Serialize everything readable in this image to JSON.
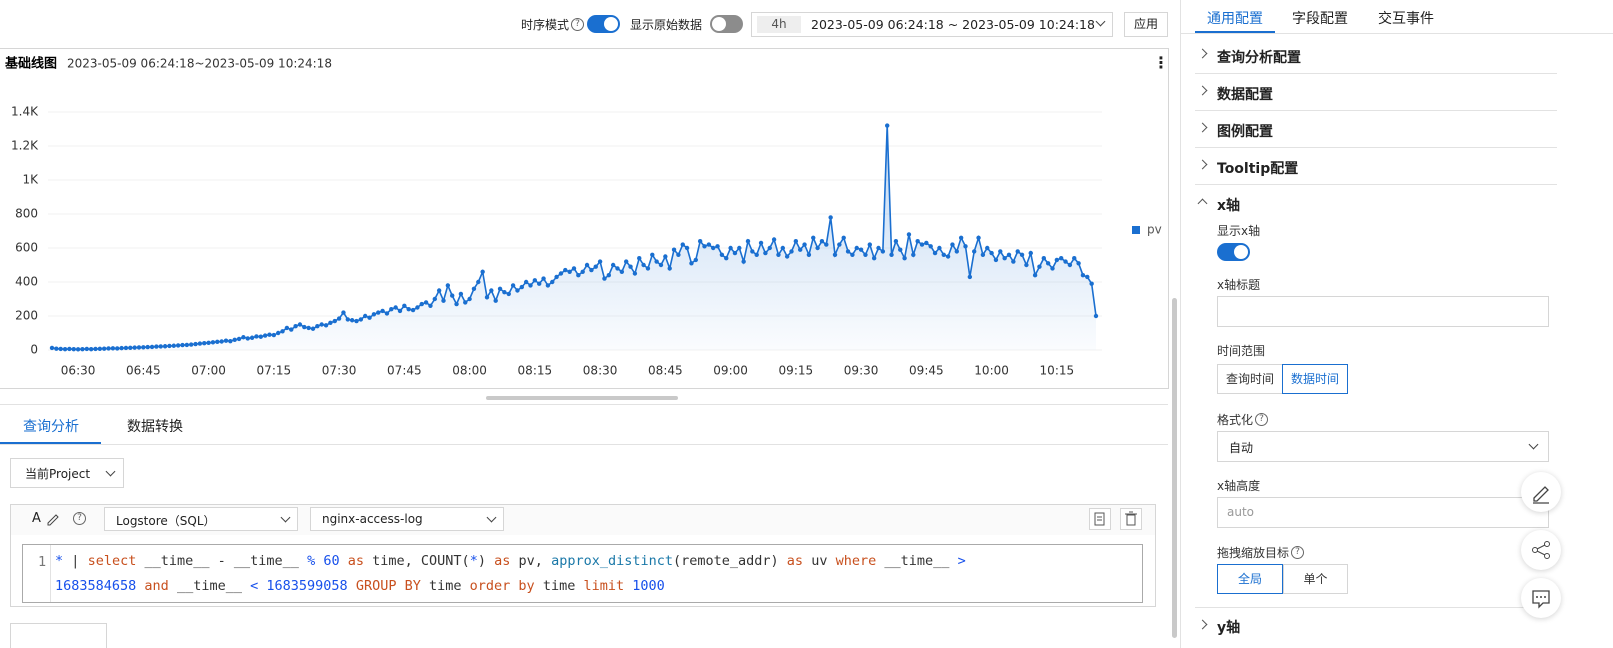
{
  "toolbar": {
    "timeseries_mode": "时序模式",
    "show_raw": "显示原始数据",
    "range_preset": "4h",
    "range": "2023-05-09 06:24:18 ~ 2023-05-09 10:24:18",
    "apply": "应用"
  },
  "chart_data": {
    "type": "line",
    "title": "基础线图",
    "subtitle": "2023-05-09 06:24:18~2023-05-09 10:24:18",
    "x": [
      "06:24",
      "06:25",
      "06:26",
      "06:27",
      "06:28",
      "06:29",
      "06:30",
      "06:31",
      "06:32",
      "06:33",
      "06:34",
      "06:35",
      "06:36",
      "06:37",
      "06:38",
      "06:39",
      "06:40",
      "06:41",
      "06:42",
      "06:43",
      "06:44",
      "06:45",
      "06:46",
      "06:47",
      "06:48",
      "06:49",
      "06:50",
      "06:51",
      "06:52",
      "06:53",
      "06:54",
      "06:55",
      "06:56",
      "06:57",
      "06:58",
      "06:59",
      "07:00",
      "07:01",
      "07:02",
      "07:03",
      "07:04",
      "07:05",
      "07:06",
      "07:07",
      "07:08",
      "07:09",
      "07:10",
      "07:11",
      "07:12",
      "07:13",
      "07:14",
      "07:15",
      "07:16",
      "07:17",
      "07:18",
      "07:19",
      "07:20",
      "07:21",
      "07:22",
      "07:23",
      "07:24",
      "07:25",
      "07:26",
      "07:27",
      "07:28",
      "07:29",
      "07:30",
      "07:31",
      "07:32",
      "07:33",
      "07:34",
      "07:35",
      "07:36",
      "07:37",
      "07:38",
      "07:39",
      "07:40",
      "07:41",
      "07:42",
      "07:43",
      "07:44",
      "07:45",
      "07:46",
      "07:47",
      "07:48",
      "07:49",
      "07:50",
      "07:51",
      "07:52",
      "07:53",
      "07:54",
      "07:55",
      "07:56",
      "07:57",
      "07:58",
      "07:59",
      "08:00",
      "08:01",
      "08:02",
      "08:03",
      "08:04",
      "08:05",
      "08:06",
      "08:07",
      "08:08",
      "08:09",
      "08:10",
      "08:11",
      "08:12",
      "08:13",
      "08:14",
      "08:15",
      "08:16",
      "08:17",
      "08:18",
      "08:19",
      "08:20",
      "08:21",
      "08:22",
      "08:23",
      "08:24",
      "08:25",
      "08:26",
      "08:27",
      "08:28",
      "08:29",
      "08:30",
      "08:31",
      "08:32",
      "08:33",
      "08:34",
      "08:35",
      "08:36",
      "08:37",
      "08:38",
      "08:39",
      "08:40",
      "08:41",
      "08:42",
      "08:43",
      "08:44",
      "08:45",
      "08:46",
      "08:47",
      "08:48",
      "08:49",
      "08:50",
      "08:51",
      "08:52",
      "08:53",
      "08:54",
      "08:55",
      "08:56",
      "08:57",
      "08:58",
      "08:59",
      "09:00",
      "09:01",
      "09:02",
      "09:03",
      "09:04",
      "09:05",
      "09:06",
      "09:07",
      "09:08",
      "09:09",
      "09:10",
      "09:11",
      "09:12",
      "09:13",
      "09:14",
      "09:15",
      "09:16",
      "09:17",
      "09:18",
      "09:19",
      "09:20",
      "09:21",
      "09:22",
      "09:23",
      "09:24",
      "09:25",
      "09:26",
      "09:27",
      "09:28",
      "09:29",
      "09:30",
      "09:31",
      "09:32",
      "09:33",
      "09:34",
      "09:35",
      "09:36",
      "09:37",
      "09:38",
      "09:39",
      "09:40",
      "09:41",
      "09:42",
      "09:43",
      "09:44",
      "09:45",
      "09:46",
      "09:47",
      "09:48",
      "09:49",
      "09:50",
      "09:51",
      "09:52",
      "09:53",
      "09:54",
      "09:55",
      "09:56",
      "09:57",
      "09:58",
      "09:59",
      "10:00",
      "10:01",
      "10:02",
      "10:03",
      "10:04",
      "10:05",
      "10:06",
      "10:07",
      "10:08",
      "10:09",
      "10:10",
      "10:11",
      "10:12",
      "10:13",
      "10:14",
      "10:15",
      "10:16",
      "10:17",
      "10:18",
      "10:19",
      "10:20",
      "10:21",
      "10:22",
      "10:23",
      "10:24"
    ],
    "xticks": [
      "06:30",
      "06:45",
      "07:00",
      "07:15",
      "07:30",
      "07:45",
      "08:00",
      "08:15",
      "08:30",
      "08:45",
      "09:00",
      "09:15",
      "09:30",
      "09:45",
      "10:00",
      "10:15"
    ],
    "series": [
      {
        "name": "pv",
        "color": "#1a6fd0",
        "values": [
          12,
          8,
          6,
          5,
          6,
          5,
          4,
          5,
          6,
          5,
          6,
          7,
          8,
          9,
          10,
          9,
          11,
          12,
          13,
          14,
          15,
          16,
          17,
          18,
          20,
          21,
          22,
          24,
          25,
          27,
          29,
          30,
          32,
          35,
          38,
          40,
          42,
          45,
          48,
          50,
          55,
          52,
          60,
          65,
          75,
          68,
          72,
          80,
          78,
          85,
          90,
          88,
          100,
          110,
          130,
          120,
          140,
          150,
          135,
          130,
          125,
          140,
          150,
          145,
          160,
          170,
          185,
          220,
          180,
          175,
          170,
          180,
          200,
          190,
          210,
          220,
          230,
          215,
          240,
          250,
          230,
          260,
          240,
          235,
          250,
          270,
          280,
          260,
          300,
          350,
          290,
          380,
          320,
          270,
          330,
          280,
          300,
          360,
          400,
          460,
          310,
          350,
          290,
          360,
          340,
          330,
          380,
          350,
          370,
          400,
          380,
          410,
          390,
          420,
          380,
          400,
          430,
          450,
          470,
          460,
          480,
          440,
          460,
          500,
          470,
          490,
          520,
          420,
          440,
          500,
          480,
          460,
          520,
          490,
          450,
          540,
          500,
          480,
          560,
          520,
          500,
          550,
          480,
          590,
          560,
          620,
          600,
          510,
          530,
          640,
          610,
          620,
          600,
          610,
          560,
          540,
          600,
          570,
          600,
          520,
          640,
          580,
          560,
          630,
          570,
          600,
          650,
          560,
          600,
          550,
          580,
          640,
          590,
          620,
          560,
          660,
          600,
          640,
          620,
          780,
          560,
          620,
          660,
          580,
          560,
          600,
          590,
          560,
          620,
          540,
          600,
          580,
          1320,
          560,
          640,
          590,
          540,
          680,
          560,
          640,
          620,
          630,
          610,
          570,
          600,
          560,
          550,
          620,
          580,
          660,
          610,
          430,
          580,
          660,
          560,
          600,
          570,
          530,
          580,
          540,
          560,
          520,
          580,
          560,
          500,
          570,
          440,
          490,
          540,
          510,
          480,
          530,
          540,
          520,
          500,
          540,
          510,
          440,
          430,
          390,
          200
        ]
      }
    ],
    "ylim": [
      0,
      1400
    ],
    "yticks": [
      0,
      200,
      400,
      600,
      800,
      {
        "value": 1000,
        "label": "1K"
      },
      {
        "value": 1200,
        "label": "1.2K"
      },
      {
        "value": 1400,
        "label": "1.4K"
      }
    ],
    "grid": true,
    "area": true,
    "legend": "right"
  },
  "tabs": [
    "查询分析",
    "数据转换"
  ],
  "project_select": "当前Project",
  "editor": {
    "icon_text": "A",
    "store_type": "Logstore（SQL）",
    "logstore": "nginx-access-log",
    "line_number": 1,
    "lines": [
      [
        "*",
        "|",
        "select",
        "__time__ - __time__",
        "%",
        "60",
        "as",
        "time, COUNT(",
        "*",
        ")",
        "as",
        "pv,",
        "approx_distinct",
        "(remote_addr)",
        "as",
        "uv",
        "where",
        "__time__",
        ">"
      ],
      [
        "1683584658",
        "and",
        "__time__",
        "<",
        "1683599058",
        "GROUP BY",
        "time",
        "order by",
        "time",
        "limit",
        "1000"
      ]
    ]
  },
  "config": {
    "tabs": [
      "通用配置",
      "字段配置",
      "交互事件"
    ],
    "sections": [
      "查询分析配置",
      "数据配置",
      "图例配置",
      "Tooltip配置",
      "x轴"
    ],
    "x_axis": {
      "show_label": "显示x轴",
      "title_label": "x轴标题",
      "time_range_label": "时间范围",
      "time_range_options": [
        "查询时间",
        "数据时间"
      ],
      "format_label": "格式化",
      "format_value": "自动",
      "height_label": "x轴高度",
      "height_placeholder": "auto",
      "zoom_label": "拖拽缩放目标",
      "zoom_options": [
        "全局",
        "单个"
      ]
    },
    "next_section": "y轴"
  }
}
